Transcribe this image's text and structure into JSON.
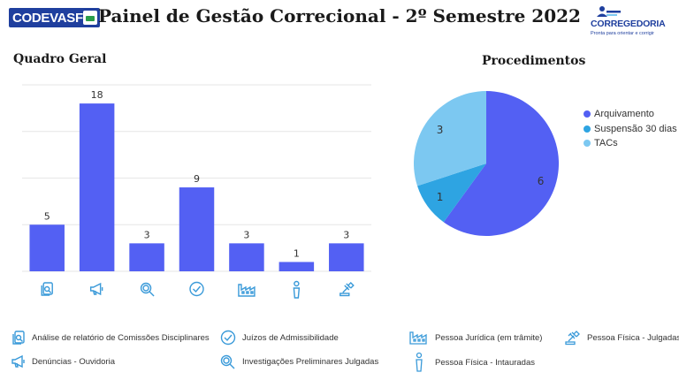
{
  "header": {
    "title": "Painel de Gestão Correcional - 2º Semestre 2022",
    "logo_left": "CODEVASF",
    "logo_right_name": "CORREGEDORIA",
    "logo_right_slogan": "Pronta para orientar e corrigir"
  },
  "sections": {
    "left_title": "Quadro Geral",
    "right_title": "Procedimentos"
  },
  "chart_data": [
    {
      "type": "bar",
      "title": "Quadro Geral",
      "categories": [
        "Análise de relatório de Comissões Disciplinares",
        "Denúncias - Ouvidoria",
        "Investigações Preliminares Julgadas",
        "Juízos de Admissibilidade",
        "Pessoa Jurídica (em trâmite)",
        "Pessoa Física - Intauradas",
        "Pessoa Física - Julgadas"
      ],
      "category_icons": [
        "document-icon",
        "megaphone-icon",
        "magnifier-icon",
        "check-icon",
        "factory-icon",
        "person-icon",
        "gavel-icon"
      ],
      "values": [
        5,
        18,
        3,
        9,
        3,
        1,
        3
      ],
      "ylim": [
        0,
        20
      ],
      "color": "#5360f3",
      "grid": true
    },
    {
      "type": "pie",
      "title": "Procedimentos",
      "labels": [
        "Arquivamento",
        "Suspensão 30 dias",
        "TACs"
      ],
      "values": [
        6,
        1,
        3
      ],
      "colors": [
        "#5360f3",
        "#2ea4e2",
        "#7cc8f1"
      ],
      "legend": "right"
    }
  ],
  "legend": {
    "items": [
      {
        "icon": "document-icon",
        "label": "Análise de relatório de Comissões Disciplinares"
      },
      {
        "icon": "megaphone-icon",
        "label": "Denúncias - Ouvidoria"
      },
      {
        "icon": "check-icon",
        "label": "Juízos de Admissibilidade"
      },
      {
        "icon": "magnifier-icon",
        "label": "Investigações Preliminares Julgadas"
      },
      {
        "icon": "factory-icon",
        "label": "Pessoa Jurídica (em trâmite)"
      },
      {
        "icon": "person-icon",
        "label": "Pessoa Física - Intauradas"
      },
      {
        "icon": "gavel-icon",
        "label": "Pessoa Física - Julgadas"
      }
    ]
  },
  "colors": {
    "icon": "#3a9ad9",
    "grid": "#e6e6e6"
  }
}
